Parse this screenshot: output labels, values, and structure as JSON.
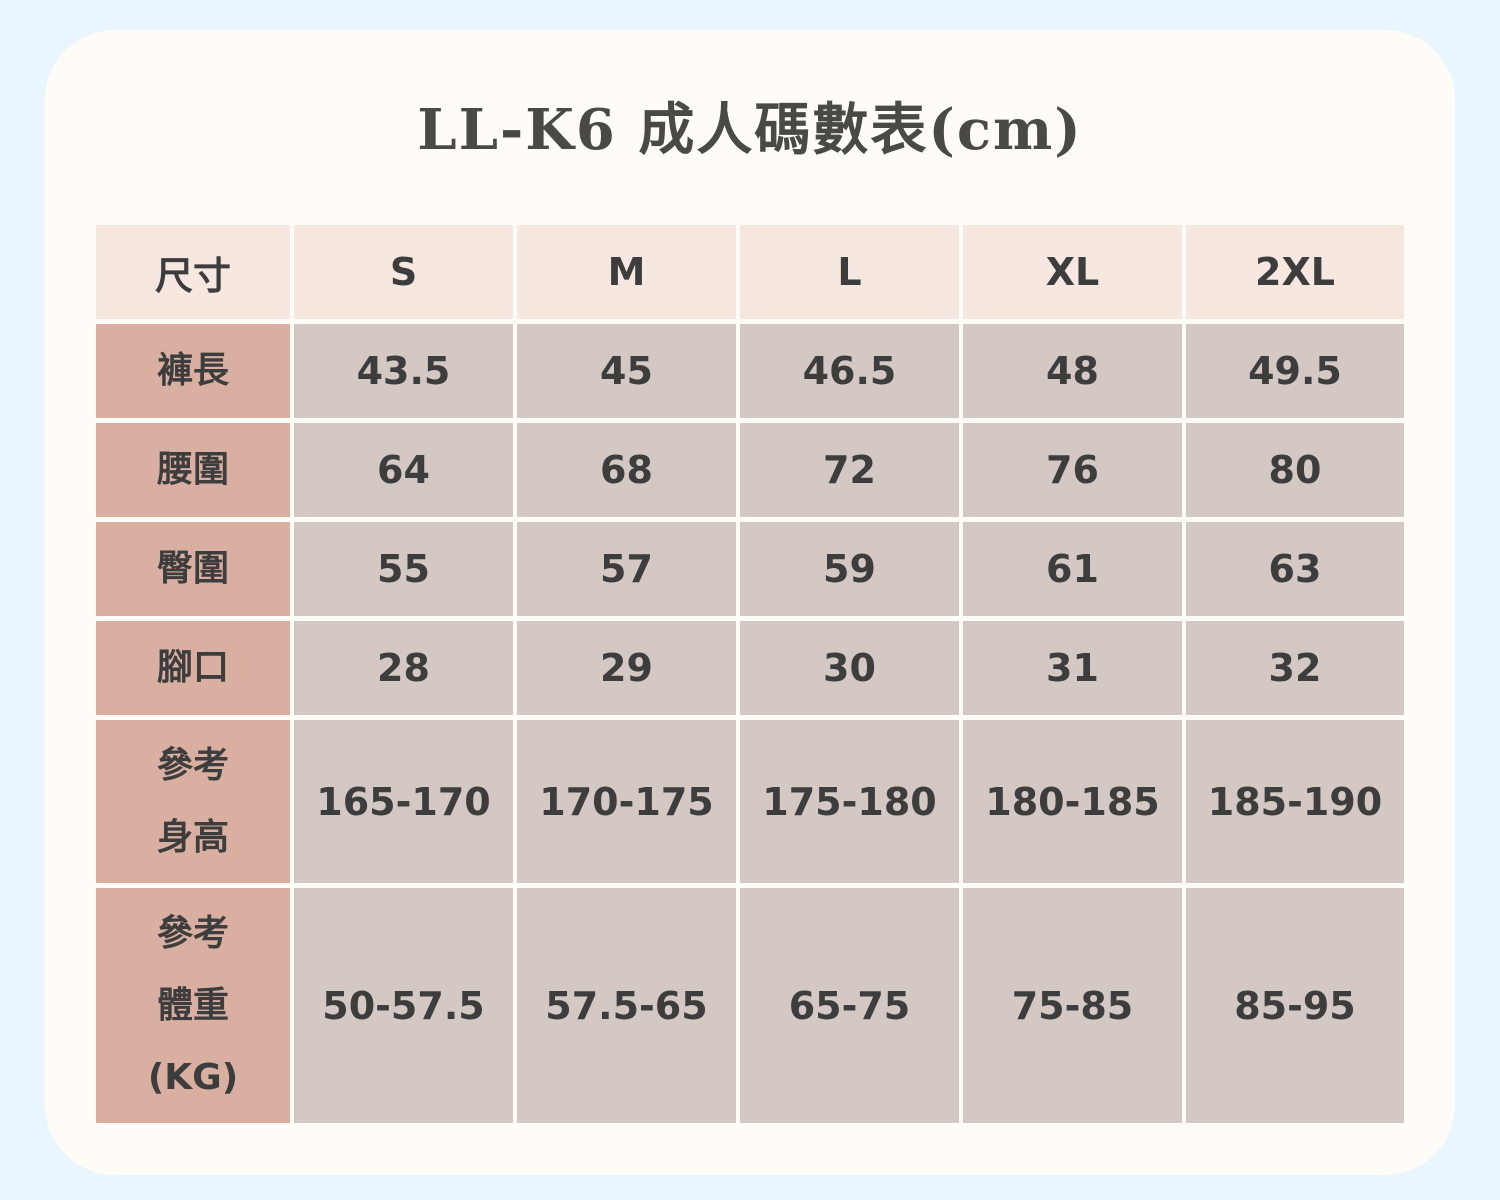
{
  "title": "LL-K6  成人碼數表(cm)",
  "colors": {
    "background": "#eaf6fd",
    "card": "#fffcf7",
    "header": "#f7e7e1",
    "row_label": "#d8afa0",
    "cell": "#d3c8c3",
    "text": "#3d3d3d"
  },
  "table": {
    "corner": "尺寸",
    "sizes": [
      "S",
      "M",
      "L",
      "XL",
      "2XL"
    ],
    "rows": [
      {
        "label": "褲長",
        "values": [
          "43.5",
          "45",
          "46.5",
          "48",
          "49.5"
        ]
      },
      {
        "label": "腰圍",
        "values": [
          "64",
          "68",
          "72",
          "76",
          "80"
        ]
      },
      {
        "label": "臀圍",
        "values": [
          "55",
          "57",
          "59",
          "61",
          "63"
        ]
      },
      {
        "label": "腳口",
        "values": [
          "28",
          "29",
          "30",
          "31",
          "32"
        ]
      },
      {
        "label": "參考\n身高",
        "values": [
          "165-170",
          "170-175",
          "175-180",
          "180-185",
          "185-190"
        ]
      },
      {
        "label": "參考\n體重\n(KG)",
        "values": [
          "50-57.5",
          "57.5-65",
          "65-75",
          "75-85",
          "85-95"
        ]
      }
    ]
  }
}
